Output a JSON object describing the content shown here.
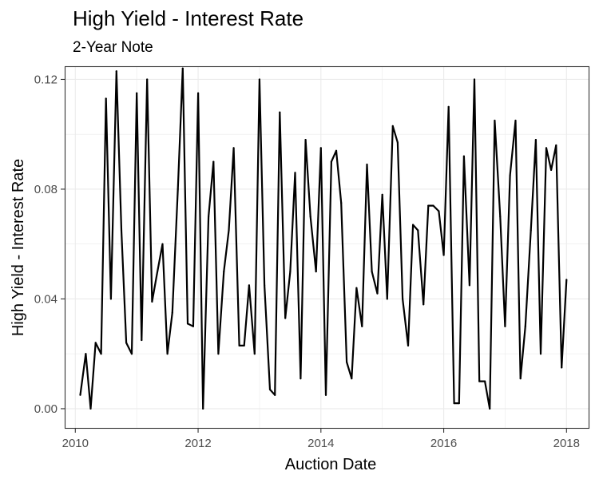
{
  "chart_data": {
    "type": "line",
    "title": "High Yield - Interest Rate",
    "subtitle": "2-Year Note",
    "xlabel": "Auction Date",
    "ylabel": "High Yield - Interest Rate",
    "xlim": [
      2009.84,
      2018.36
    ],
    "ylim": [
      -0.007,
      0.1245
    ],
    "x_ticks": [
      2010,
      2012,
      2014,
      2016,
      2018
    ],
    "x_tick_labels": [
      "2010",
      "2012",
      "2014",
      "2016",
      "2018"
    ],
    "y_ticks": [
      0.0,
      0.04,
      0.08,
      0.12
    ],
    "y_tick_labels": [
      "0.00",
      "0.04",
      "0.08",
      "0.12"
    ],
    "grid": true,
    "legend": "none",
    "line_color": "#000000",
    "series": [
      {
        "x": [
          2010.08,
          2010.17,
          2010.25,
          2010.33,
          2010.42,
          2010.5,
          2010.58,
          2010.67,
          2010.75,
          2010.83,
          2010.92,
          2011.0,
          2011.08,
          2011.17,
          2011.25,
          2011.33,
          2011.42,
          2011.5,
          2011.58,
          2011.67,
          2011.75,
          2011.83,
          2011.92,
          2012.0,
          2012.08,
          2012.17,
          2012.25,
          2012.33,
          2012.42,
          2012.5,
          2012.58,
          2012.67,
          2012.75,
          2012.83,
          2012.92,
          2013.0,
          2013.08,
          2013.17,
          2013.25,
          2013.33,
          2013.42,
          2013.5,
          2013.58,
          2013.67,
          2013.75,
          2013.83,
          2013.92,
          2014.0,
          2014.08,
          2014.17,
          2014.25,
          2014.33,
          2014.42,
          2014.5,
          2014.58,
          2014.67,
          2014.75,
          2014.83,
          2014.92,
          2015.0,
          2015.08,
          2015.17,
          2015.25,
          2015.33,
          2015.42,
          2015.5,
          2015.58,
          2015.67,
          2015.75,
          2015.83,
          2015.92,
          2016.0,
          2016.08,
          2016.17,
          2016.25,
          2016.33,
          2016.42,
          2016.5,
          2016.58,
          2016.67,
          2016.75,
          2016.83,
          2016.92,
          2017.0,
          2017.08,
          2017.17,
          2017.25,
          2017.33,
          2017.42,
          2017.5,
          2017.58,
          2017.67,
          2017.75,
          2017.83,
          2017.92,
          2018.0
        ],
        "y": [
          0.005,
          0.02,
          0.0,
          0.024,
          0.02,
          0.113,
          0.04,
          0.123,
          0.065,
          0.024,
          0.02,
          0.115,
          0.025,
          0.12,
          0.039,
          0.049,
          0.06,
          0.02,
          0.035,
          0.08,
          0.124,
          0.031,
          0.03,
          0.115,
          0.0,
          0.07,
          0.09,
          0.02,
          0.05,
          0.065,
          0.095,
          0.023,
          0.023,
          0.045,
          0.02,
          0.12,
          0.045,
          0.007,
          0.005,
          0.108,
          0.033,
          0.05,
          0.086,
          0.011,
          0.098,
          0.07,
          0.05,
          0.095,
          0.005,
          0.09,
          0.094,
          0.075,
          0.017,
          0.011,
          0.044,
          0.03,
          0.089,
          0.05,
          0.042,
          0.078,
          0.04,
          0.103,
          0.097,
          0.04,
          0.023,
          0.067,
          0.065,
          0.038,
          0.074,
          0.074,
          0.072,
          0.056,
          0.11,
          0.002,
          0.002,
          0.092,
          0.045,
          0.12,
          0.01,
          0.01,
          0.0,
          0.105,
          0.07,
          0.03,
          0.085,
          0.105,
          0.011,
          0.03,
          0.065,
          0.098,
          0.02,
          0.095,
          0.087,
          0.096,
          0.015,
          0.047
        ]
      }
    ]
  }
}
